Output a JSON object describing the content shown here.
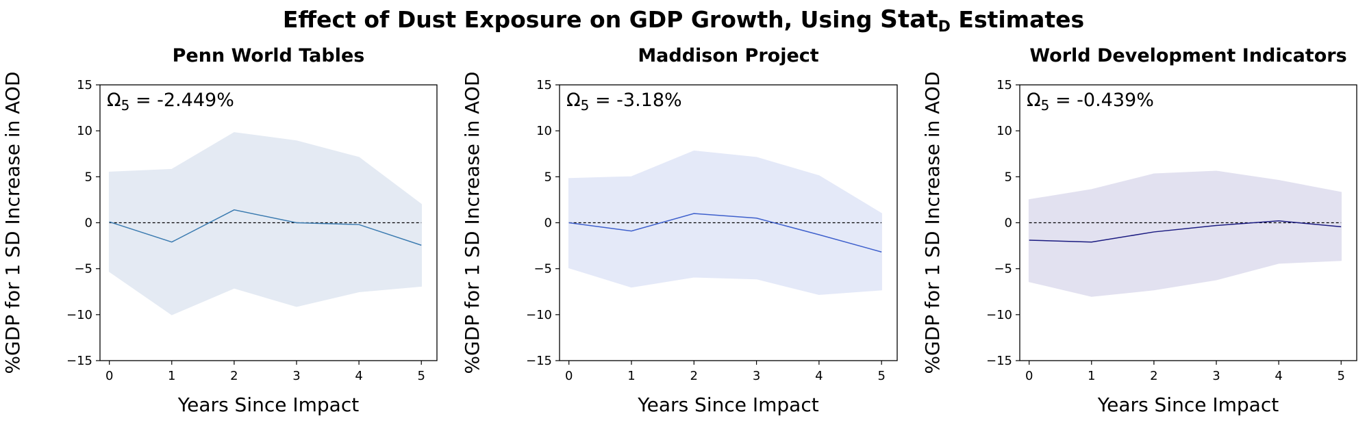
{
  "figure": {
    "suptitle_pre": "Effect of Dust Exposure on GDP Growth, Using ",
    "suptitle_stat": "Stat",
    "suptitle_stat_sub": "D",
    "suptitle_post": " Estimates"
  },
  "chart_data": [
    {
      "type": "line",
      "title": "Penn World Tables",
      "xlabel": "Years Since Impact",
      "ylabel": "%GDP for 1 SD Increase in AOD",
      "x": [
        0,
        1,
        2,
        3,
        4,
        5
      ],
      "xlim": [
        -0.15,
        5.25
      ],
      "ylim": [
        -15,
        15
      ],
      "yticks": [
        -15,
        -10,
        -5,
        0,
        5,
        10,
        15
      ],
      "xticks": [
        0,
        1,
        2,
        3,
        4,
        5
      ],
      "series": [
        {
          "values": [
            0.1,
            -2.1,
            1.4,
            0.0,
            -0.2,
            -2.449
          ],
          "lower": [
            -5.3,
            -10.0,
            -7.1,
            -9.1,
            -7.5,
            -6.9
          ],
          "upper": [
            5.5,
            5.8,
            9.8,
            8.9,
            7.1,
            2.0
          ],
          "color": "#3b7bb0",
          "band_color": "#dbe4f0"
        }
      ],
      "reference_line": 0,
      "annotation": {
        "symbol": "Ω",
        "sub": "5",
        "text": " = -2.449%"
      }
    },
    {
      "type": "line",
      "title": "Maddison Project",
      "xlabel": "Years Since Impact",
      "ylabel": "%GDP for 1 SD Increase in AOD",
      "x": [
        0,
        1,
        2,
        3,
        4,
        5
      ],
      "xlim": [
        -0.15,
        5.25
      ],
      "ylim": [
        -15,
        15
      ],
      "yticks": [
        -15,
        -10,
        -5,
        0,
        5,
        10,
        15
      ],
      "xticks": [
        0,
        1,
        2,
        3,
        4,
        5
      ],
      "series": [
        {
          "values": [
            0.0,
            -0.9,
            1.0,
            0.5,
            -1.3,
            -3.18
          ],
          "lower": [
            -4.9,
            -7.0,
            -5.9,
            -6.1,
            -7.8,
            -7.3
          ],
          "upper": [
            4.8,
            5.0,
            7.8,
            7.1,
            5.1,
            1.0
          ],
          "color": "#3d5fcc",
          "band_color": "#dce2f6"
        }
      ],
      "reference_line": 0,
      "annotation": {
        "symbol": "Ω",
        "sub": "5",
        "text": " = -3.18%"
      }
    },
    {
      "type": "line",
      "title": "World Development Indicators",
      "xlabel": "Years Since Impact",
      "ylabel": "%GDP for 1 SD Increase in AOD",
      "x": [
        0,
        1,
        2,
        3,
        4,
        5
      ],
      "xlim": [
        -0.15,
        5.25
      ],
      "ylim": [
        -15,
        15
      ],
      "yticks": [
        -15,
        -10,
        -5,
        0,
        5,
        10,
        15
      ],
      "xticks": [
        0,
        1,
        2,
        3,
        4,
        5
      ],
      "series": [
        {
          "values": [
            -1.9,
            -2.1,
            -1.0,
            -0.3,
            0.2,
            -0.439
          ],
          "lower": [
            -6.4,
            -8.0,
            -7.3,
            -6.2,
            -4.4,
            -4.1
          ],
          "upper": [
            2.5,
            3.6,
            5.3,
            5.6,
            4.6,
            3.3
          ],
          "color": "#1a1a80",
          "band_color": "#d9d8ec"
        }
      ],
      "reference_line": 0,
      "annotation": {
        "symbol": "Ω",
        "sub": "5",
        "text": " = -0.439%"
      }
    }
  ]
}
